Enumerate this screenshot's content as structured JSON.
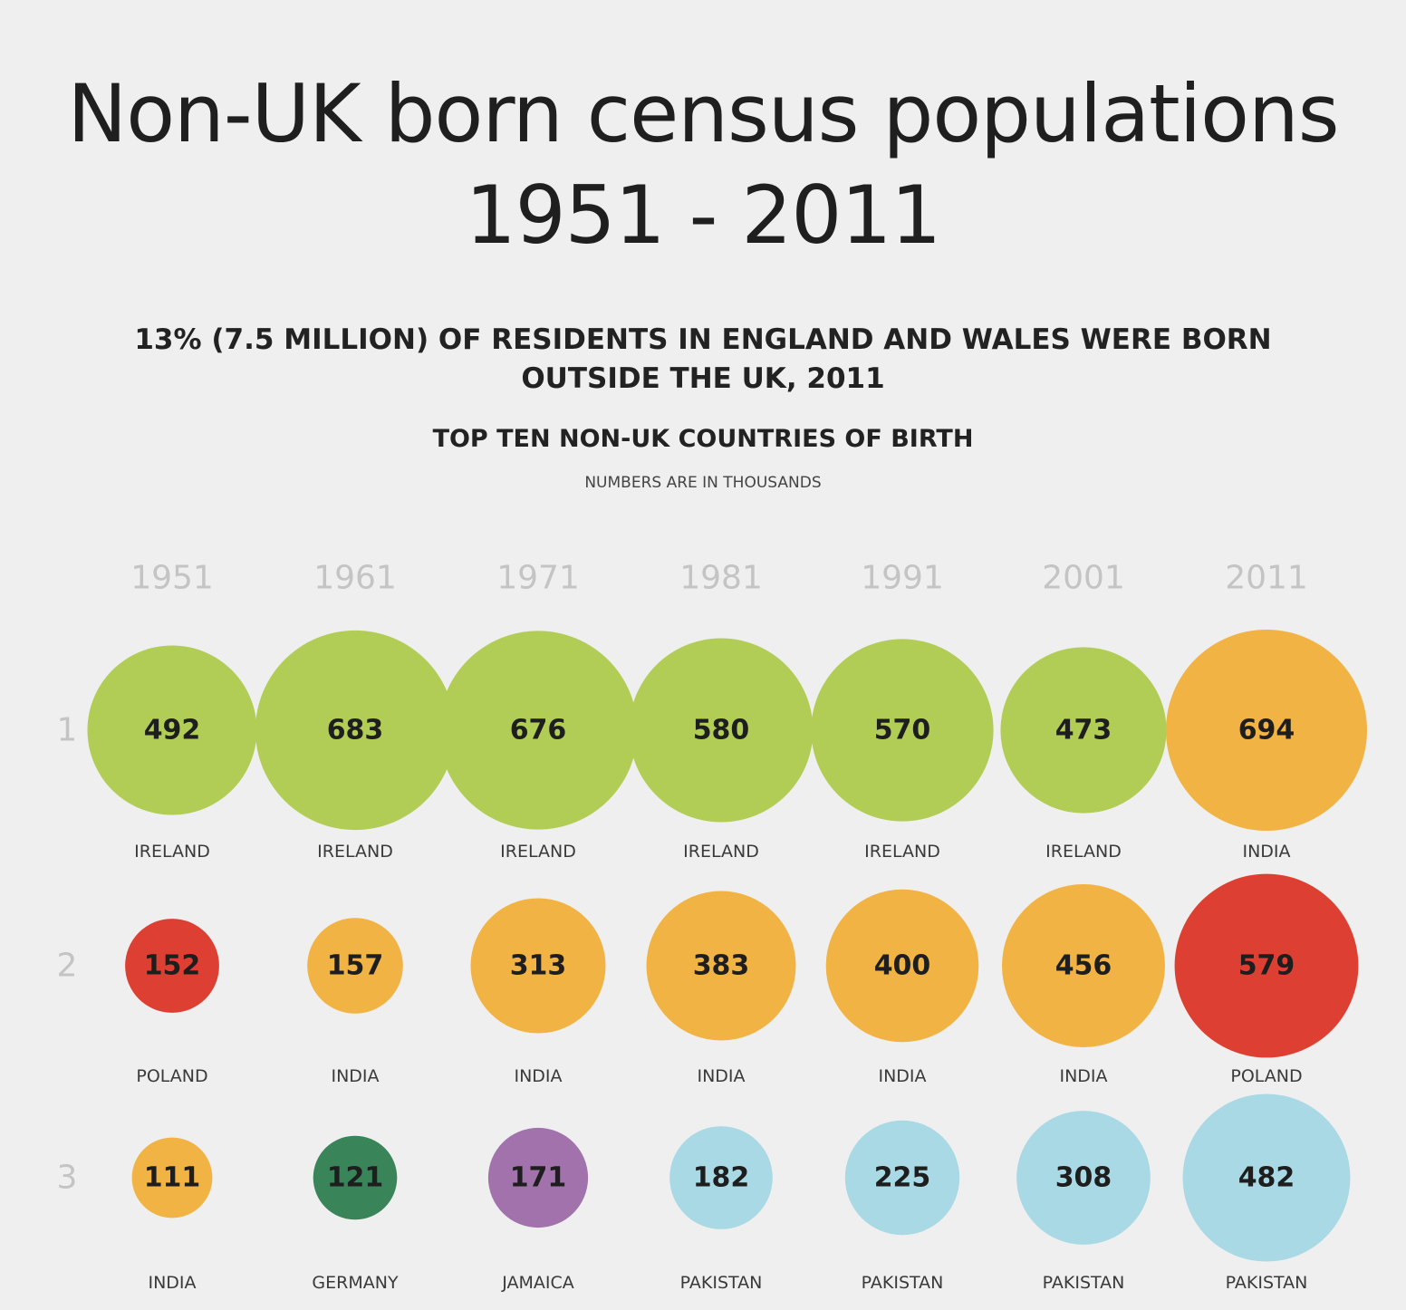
{
  "title_line1": "Non-UK born census populations",
  "title_line2": "1951 - 2011",
  "subtitle": "13% (7.5 MILLION) OF RESIDENTS IN ENGLAND AND WALES WERE BORN OUTSIDE THE UK, 2011",
  "chart_heading": "TOP TEN NON-UK COUNTRIES OF BIRTH",
  "chart_note": "NUMBERS ARE IN THOUSANDS",
  "colors": {
    "Ireland": "#b2cd56",
    "India": "#f1b343",
    "Poland": "#dd4032",
    "Pakistan": "#a9d9e4",
    "Germany": "#3a845a",
    "Jamaica": "#a172ab"
  },
  "chart_data": {
    "type": "bubble",
    "years": [
      "1951",
      "1961",
      "1971",
      "1981",
      "1991",
      "2001",
      "2011"
    ],
    "rank_labels": [
      "1",
      "2",
      "3"
    ],
    "unit": "thousands",
    "ranks": [
      {
        "rank": "1",
        "entries": [
          {
            "country": "IRELAND",
            "value": 492
          },
          {
            "country": "IRELAND",
            "value": 683
          },
          {
            "country": "IRELAND",
            "value": 676
          },
          {
            "country": "IRELAND",
            "value": 580
          },
          {
            "country": "IRELAND",
            "value": 570
          },
          {
            "country": "IRELAND",
            "value": 473
          },
          {
            "country": "INDIA",
            "value": 694
          }
        ]
      },
      {
        "rank": "2",
        "entries": [
          {
            "country": "POLAND",
            "value": 152
          },
          {
            "country": "INDIA",
            "value": 157
          },
          {
            "country": "INDIA",
            "value": 313
          },
          {
            "country": "INDIA",
            "value": 383
          },
          {
            "country": "INDIA",
            "value": 400
          },
          {
            "country": "INDIA",
            "value": 456
          },
          {
            "country": "POLAND",
            "value": 579
          }
        ]
      },
      {
        "rank": "3",
        "entries": [
          {
            "country": "INDIA",
            "value": 111
          },
          {
            "country": "GERMANY",
            "value": 121
          },
          {
            "country": "JAMAICA",
            "value": 171
          },
          {
            "country": "PAKISTAN",
            "value": 182
          },
          {
            "country": "PAKISTAN",
            "value": 225
          },
          {
            "country": "PAKISTAN",
            "value": 308
          },
          {
            "country": "PAKISTAN",
            "value": 482
          }
        ]
      }
    ]
  }
}
